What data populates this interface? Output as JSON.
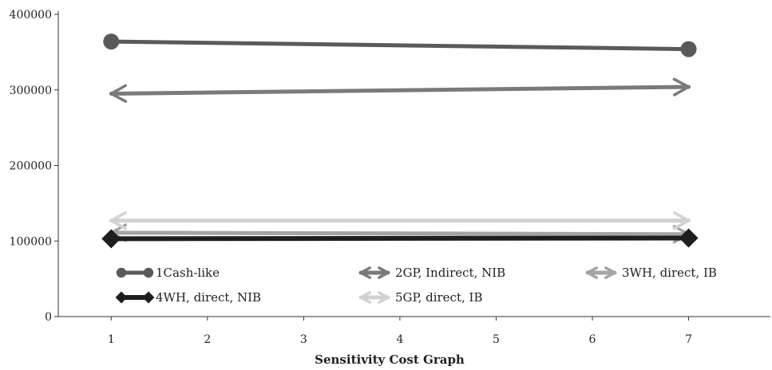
{
  "chart_data": {
    "type": "line",
    "xlabel": "Sensitivity Cost Graph",
    "ylabel": "",
    "x_ticks": [
      1,
      2,
      3,
      4,
      5,
      6,
      7
    ],
    "y_ticks": [
      0,
      100000,
      200000,
      300000,
      400000
    ],
    "xlim": [
      0.45,
      7.85
    ],
    "ylim": [
      0,
      400000
    ],
    "grid": false,
    "legend_position": "inside-bottom",
    "series": [
      {
        "name": "1Cash-like",
        "x": [
          1,
          7
        ],
        "y": [
          364000,
          354000
        ],
        "color": "#5a5a5a",
        "marker": "circle"
      },
      {
        "name": "2GP, Indirect, NIB",
        "x": [
          1,
          7
        ],
        "y": [
          295000,
          304000
        ],
        "color": "#7a7a7a",
        "marker": "arrow"
      },
      {
        "name": "3WH, direct, IB",
        "x": [
          1,
          7
        ],
        "y": [
          111000,
          109000
        ],
        "color": "#a4a4a4",
        "marker": "arrow"
      },
      {
        "name": "4WH, direct, NIB",
        "x": [
          1,
          7
        ],
        "y": [
          103000,
          104000
        ],
        "color": "#1e1e1e",
        "marker": "diamond"
      },
      {
        "name": "5GP, direct, IB",
        "x": [
          1,
          7
        ],
        "y": [
          127000,
          127000
        ],
        "color": "#d2d2d2",
        "marker": "arrow"
      }
    ]
  }
}
